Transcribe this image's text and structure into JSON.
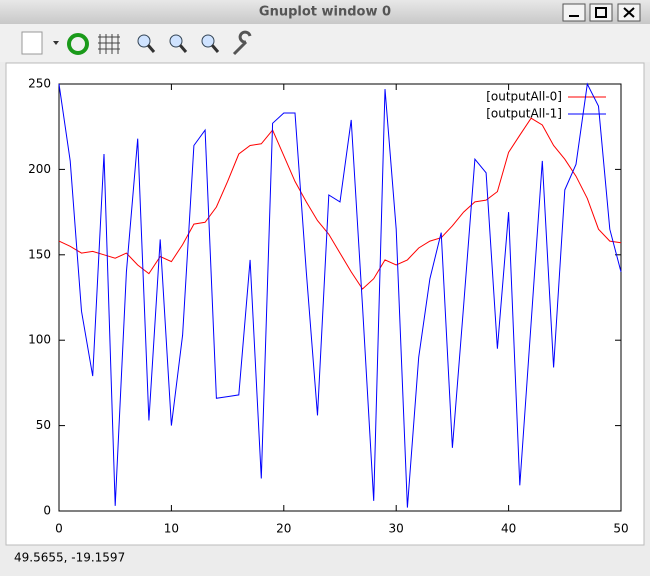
{
  "window": {
    "title": "Gnuplot window 0",
    "status": "49.5655, -19.1597"
  },
  "chart_data": {
    "type": "line",
    "x": [
      0,
      1,
      2,
      3,
      4,
      5,
      6,
      7,
      8,
      9,
      10,
      11,
      12,
      13,
      14,
      15,
      16,
      17,
      18,
      19,
      20,
      21,
      22,
      23,
      24,
      25,
      26,
      27,
      28,
      29,
      30,
      31,
      32,
      33,
      34,
      35,
      36,
      37,
      38,
      39,
      40,
      41,
      42,
      43,
      44,
      45,
      46,
      47,
      48,
      49,
      50
    ],
    "series": [
      {
        "name": "[outputAll-0]",
        "color": "#ff0000",
        "values": [
          158,
          155,
          151,
          152,
          150,
          148,
          151,
          144,
          139,
          149,
          146,
          156,
          168,
          169,
          178,
          193,
          209,
          214,
          215,
          223,
          208,
          193,
          181,
          170,
          162,
          151,
          140,
          130,
          136,
          147,
          144,
          147,
          154,
          158,
          160,
          167,
          175,
          181,
          182,
          187,
          210,
          220,
          230,
          226,
          214,
          206,
          196,
          183,
          165,
          158,
          157
        ]
      },
      {
        "name": "[outputAll-1]",
        "color": "#0000ff",
        "values": [
          250,
          205,
          117,
          79,
          209,
          3,
          140,
          218,
          53,
          159,
          50,
          103,
          214,
          223,
          66,
          67,
          68,
          147,
          19,
          227,
          233,
          233,
          140,
          56,
          185,
          181,
          229,
          120,
          6,
          247,
          165,
          2,
          90,
          136,
          163,
          37,
          120,
          206,
          198,
          95,
          175,
          15,
          110,
          205,
          84,
          188,
          203,
          250,
          237,
          165,
          140
        ]
      }
    ],
    "xlim": [
      0,
      50
    ],
    "xticks": [
      0,
      10,
      20,
      30,
      40,
      50
    ],
    "ylim": [
      0,
      250
    ],
    "yticks": [
      0,
      50,
      100,
      150,
      200,
      250
    ],
    "grid": false,
    "legend": "top-right"
  }
}
